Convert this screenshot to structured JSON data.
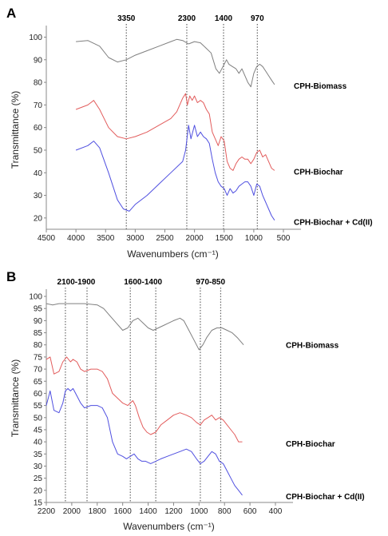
{
  "chart_data": [
    {
      "panel": "A",
      "type": "line",
      "xlabel": "Wavenumbers (cm⁻¹)",
      "ylabel": "Transmittance (%)",
      "xlim": [
        4500,
        500
      ],
      "ylim": [
        15,
        103
      ],
      "x_ticks": [
        4500,
        4000,
        3500,
        3000,
        2500,
        2000,
        1500,
        1000,
        500
      ],
      "y_ticks": [
        20,
        30,
        40,
        50,
        60,
        70,
        80,
        90,
        100
      ],
      "annotations": [
        {
          "label": "3350",
          "x": 3150
        },
        {
          "label": "2300",
          "x": 2130
        },
        {
          "label": "1400",
          "x": 1510
        },
        {
          "label": "970",
          "x": 940
        }
      ],
      "series": [
        {
          "name": "CPH-Biomass",
          "color": "#7f7f7f",
          "points": [
            [
              4000,
              98
            ],
            [
              3800,
              98.5
            ],
            [
              3600,
              96
            ],
            [
              3450,
              91
            ],
            [
              3300,
              89
            ],
            [
              3150,
              90
            ],
            [
              3000,
              92
            ],
            [
              2800,
              94
            ],
            [
              2600,
              96
            ],
            [
              2400,
              98
            ],
            [
              2300,
              99
            ],
            [
              2200,
              98.5
            ],
            [
              2100,
              97
            ],
            [
              2000,
              98
            ],
            [
              1900,
              97.5
            ],
            [
              1800,
              95
            ],
            [
              1720,
              93
            ],
            [
              1640,
              86
            ],
            [
              1580,
              84
            ],
            [
              1520,
              87
            ],
            [
              1460,
              90
            ],
            [
              1420,
              88
            ],
            [
              1360,
              87
            ],
            [
              1300,
              86
            ],
            [
              1250,
              84
            ],
            [
              1200,
              86
            ],
            [
              1150,
              83
            ],
            [
              1100,
              80
            ],
            [
              1050,
              78
            ],
            [
              1000,
              84
            ],
            [
              950,
              87
            ],
            [
              900,
              88
            ],
            [
              850,
              87
            ],
            [
              800,
              85
            ],
            [
              750,
              83
            ],
            [
              700,
              81
            ],
            [
              650,
              79
            ]
          ]
        },
        {
          "name": "CPH-Biochar",
          "color": "#e25c5c",
          "points": [
            [
              4000,
              68
            ],
            [
              3800,
              70
            ],
            [
              3700,
              72
            ],
            [
              3600,
              68
            ],
            [
              3450,
              60
            ],
            [
              3300,
              56
            ],
            [
              3150,
              55
            ],
            [
              3000,
              56
            ],
            [
              2800,
              58
            ],
            [
              2600,
              61
            ],
            [
              2400,
              64
            ],
            [
              2300,
              67
            ],
            [
              2200,
              73
            ],
            [
              2150,
              75
            ],
            [
              2120,
              70
            ],
            [
              2080,
              74
            ],
            [
              2040,
              72
            ],
            [
              2000,
              74
            ],
            [
              1950,
              71
            ],
            [
              1900,
              72
            ],
            [
              1850,
              71
            ],
            [
              1800,
              68
            ],
            [
              1750,
              66
            ],
            [
              1700,
              58
            ],
            [
              1650,
              55
            ],
            [
              1600,
              52
            ],
            [
              1550,
              56
            ],
            [
              1500,
              54
            ],
            [
              1450,
              45
            ],
            [
              1400,
              42
            ],
            [
              1350,
              41
            ],
            [
              1300,
              44
            ],
            [
              1250,
              46
            ],
            [
              1200,
              47
            ],
            [
              1150,
              46
            ],
            [
              1100,
              46
            ],
            [
              1050,
              44
            ],
            [
              1000,
              46
            ],
            [
              950,
              49
            ],
            [
              900,
              50
            ],
            [
              850,
              47
            ],
            [
              800,
              48
            ],
            [
              750,
              45
            ],
            [
              700,
              42
            ],
            [
              650,
              41
            ]
          ]
        },
        {
          "name": "CPH-Biochar + Cd(II)",
          "color": "#4f4fe0",
          "points": [
            [
              4000,
              50
            ],
            [
              3800,
              52
            ],
            [
              3700,
              54
            ],
            [
              3600,
              51
            ],
            [
              3450,
              40
            ],
            [
              3300,
              28
            ],
            [
              3200,
              24
            ],
            [
              3100,
              23
            ],
            [
              3000,
              26
            ],
            [
              2800,
              30
            ],
            [
              2600,
              35
            ],
            [
              2400,
              40
            ],
            [
              2200,
              45
            ],
            [
              2150,
              50
            ],
            [
              2100,
              61
            ],
            [
              2060,
              55
            ],
            [
              2000,
              61
            ],
            [
              1950,
              56
            ],
            [
              1900,
              58
            ],
            [
              1850,
              56
            ],
            [
              1800,
              55
            ],
            [
              1750,
              53
            ],
            [
              1700,
              46
            ],
            [
              1650,
              40
            ],
            [
              1600,
              36
            ],
            [
              1550,
              34
            ],
            [
              1500,
              33
            ],
            [
              1450,
              30
            ],
            [
              1400,
              33
            ],
            [
              1350,
              31
            ],
            [
              1300,
              32
            ],
            [
              1250,
              34
            ],
            [
              1200,
              35
            ],
            [
              1150,
              36
            ],
            [
              1100,
              36
            ],
            [
              1050,
              34
            ],
            [
              1000,
              30
            ],
            [
              950,
              35
            ],
            [
              900,
              34
            ],
            [
              850,
              30
            ],
            [
              800,
              27
            ],
            [
              750,
              24
            ],
            [
              700,
              21
            ],
            [
              650,
              19
            ]
          ]
        }
      ]
    },
    {
      "panel": "B",
      "type": "line",
      "xlabel": "Wavenumbers (cm⁻¹)",
      "ylabel": "Transmittance (%)",
      "xlim": [
        2200,
        400
      ],
      "ylim": [
        15,
        101
      ],
      "x_ticks": [
        2200,
        2000,
        1800,
        1600,
        1400,
        1200,
        1000,
        800,
        600,
        400
      ],
      "y_ticks": [
        15,
        20,
        25,
        30,
        35,
        40,
        45,
        50,
        55,
        60,
        65,
        70,
        75,
        80,
        85,
        90,
        95,
        100
      ],
      "annotations": [
        {
          "label": "2100-1900",
          "x1": 2050,
          "x2": 1880
        },
        {
          "label": "1600-1400",
          "x1": 1540,
          "x2": 1340
        },
        {
          "label": "970-850",
          "x1": 990,
          "x2": 830
        }
      ],
      "series": [
        {
          "name": "CPH-Biomass",
          "color": "#7f7f7f",
          "points": [
            [
              2200,
              97
            ],
            [
              2150,
              96.5
            ],
            [
              2100,
              97
            ],
            [
              2000,
              97
            ],
            [
              1900,
              97
            ],
            [
              1800,
              96.5
            ],
            [
              1750,
              95
            ],
            [
              1700,
              92
            ],
            [
              1650,
              89
            ],
            [
              1600,
              86
            ],
            [
              1560,
              87
            ],
            [
              1520,
              90
            ],
            [
              1480,
              91
            ],
            [
              1440,
              89
            ],
            [
              1400,
              87
            ],
            [
              1360,
              86
            ],
            [
              1320,
              87
            ],
            [
              1280,
              88
            ],
            [
              1240,
              89
            ],
            [
              1200,
              90
            ],
            [
              1150,
              91
            ],
            [
              1120,
              90
            ],
            [
              1080,
              86
            ],
            [
              1040,
              82
            ],
            [
              1000,
              78
            ],
            [
              970,
              80
            ],
            [
              940,
              83
            ],
            [
              900,
              86
            ],
            [
              860,
              87
            ],
            [
              820,
              87
            ],
            [
              780,
              86
            ],
            [
              740,
              85
            ],
            [
              700,
              83
            ],
            [
              650,
              80
            ]
          ]
        },
        {
          "name": "CPH-Biochar",
          "color": "#e25c5c",
          "points": [
            [
              2200,
              74
            ],
            [
              2170,
              75
            ],
            [
              2140,
              68
            ],
            [
              2100,
              69
            ],
            [
              2070,
              73
            ],
            [
              2040,
              75
            ],
            [
              2010,
              73
            ],
            [
              1990,
              74
            ],
            [
              1960,
              73
            ],
            [
              1930,
              70
            ],
            [
              1900,
              69
            ],
            [
              1850,
              70
            ],
            [
              1800,
              70
            ],
            [
              1760,
              69
            ],
            [
              1720,
              66
            ],
            [
              1680,
              60
            ],
            [
              1640,
              58
            ],
            [
              1600,
              56
            ],
            [
              1560,
              55
            ],
            [
              1520,
              57
            ],
            [
              1500,
              55
            ],
            [
              1470,
              50
            ],
            [
              1440,
              46
            ],
            [
              1410,
              44
            ],
            [
              1380,
              43
            ],
            [
              1340,
              44
            ],
            [
              1300,
              47
            ],
            [
              1250,
              49
            ],
            [
              1200,
              51
            ],
            [
              1150,
              52
            ],
            [
              1100,
              51
            ],
            [
              1060,
              50
            ],
            [
              1020,
              48
            ],
            [
              990,
              47
            ],
            [
              960,
              49
            ],
            [
              930,
              50
            ],
            [
              900,
              51
            ],
            [
              870,
              49
            ],
            [
              840,
              50
            ],
            [
              810,
              49
            ],
            [
              780,
              47
            ],
            [
              750,
              45
            ],
            [
              720,
              43
            ],
            [
              690,
              40
            ],
            [
              660,
              40
            ]
          ]
        },
        {
          "name": "CPH-Biochar + Cd(II)",
          "color": "#4f4fe0",
          "points": [
            [
              2200,
              55
            ],
            [
              2170,
              61
            ],
            [
              2140,
              53
            ],
            [
              2100,
              52
            ],
            [
              2070,
              56
            ],
            [
              2050,
              61
            ],
            [
              2030,
              62
            ],
            [
              2010,
              61
            ],
            [
              1990,
              62
            ],
            [
              1960,
              59
            ],
            [
              1930,
              56
            ],
            [
              1900,
              54
            ],
            [
              1850,
              55
            ],
            [
              1800,
              55
            ],
            [
              1760,
              54
            ],
            [
              1720,
              50
            ],
            [
              1680,
              40
            ],
            [
              1640,
              35
            ],
            [
              1600,
              34
            ],
            [
              1570,
              33
            ],
            [
              1540,
              34
            ],
            [
              1510,
              35
            ],
            [
              1480,
              33
            ],
            [
              1450,
              32
            ],
            [
              1420,
              32
            ],
            [
              1380,
              31
            ],
            [
              1340,
              32
            ],
            [
              1300,
              33
            ],
            [
              1250,
              34
            ],
            [
              1200,
              35
            ],
            [
              1150,
              36
            ],
            [
              1100,
              37
            ],
            [
              1060,
              36
            ],
            [
              1020,
              33
            ],
            [
              990,
              31
            ],
            [
              960,
              32
            ],
            [
              930,
              34
            ],
            [
              900,
              36
            ],
            [
              870,
              35
            ],
            [
              840,
              32
            ],
            [
              810,
              31
            ],
            [
              780,
              28
            ],
            [
              750,
              25
            ],
            [
              720,
              22
            ],
            [
              690,
              20
            ],
            [
              660,
              18
            ]
          ]
        }
      ]
    }
  ]
}
